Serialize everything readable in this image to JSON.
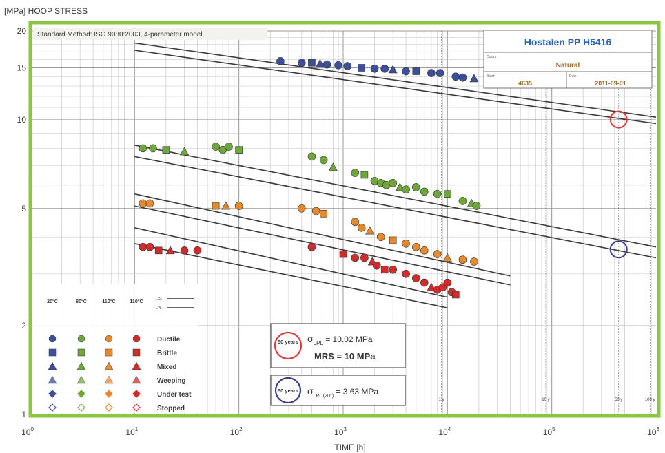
{
  "chart_data": {
    "type": "scatter",
    "ylabel": "[MPa] HOOP STRESS",
    "xlabel": "TIME [h]",
    "x_scale": "log",
    "y_scale": "log",
    "xlim": [
      1,
      1000000
    ],
    "ylim": [
      1,
      20
    ],
    "grid": true,
    "method_note": "Standard Method: ISO 9080:2003, 4-parameter model",
    "y_ticks": [
      {
        "value": 20,
        "label": "20"
      },
      {
        "value": 15,
        "label": "15"
      },
      {
        "value": 10,
        "label": "10"
      },
      {
        "value": 5,
        "label": "5"
      },
      {
        "value": 2,
        "label": "2"
      },
      {
        "value": 1,
        "label": "1"
      }
    ],
    "x_ticks": [
      {
        "value": 1,
        "base": "10",
        "exp": "0"
      },
      {
        "value": 10,
        "base": "10",
        "exp": "1"
      },
      {
        "value": 100,
        "base": "10",
        "exp": "2"
      },
      {
        "value": 1000,
        "base": "10",
        "exp": "3"
      },
      {
        "value": 10000,
        "base": "10",
        "exp": "4"
      },
      {
        "value": 100000,
        "base": "10",
        "exp": "5"
      },
      {
        "value": 1000000,
        "base": "10",
        "exp": "6"
      }
    ],
    "year_marks": [
      {
        "x": 8760,
        "label": "1 y"
      },
      {
        "x": 87600,
        "label": "10 y"
      },
      {
        "x": 438000,
        "label": "50 y"
      },
      {
        "x": 876000,
        "label": "100 y"
      }
    ],
    "info_box": {
      "title": "Hostalen PP H5416",
      "row1_label": "Colour",
      "row1_value": "Natural",
      "row2_label": "Batch",
      "row2_value": "4635",
      "row2b_label": "Date",
      "row2b_value": "2011-09-01"
    },
    "reference_lines": [
      {
        "name": "20°C",
        "points": [
          [
            10,
            18.2
          ],
          [
            1000000,
            10.2
          ]
        ]
      },
      {
        "name": "20°C",
        "points": [
          [
            10,
            17.2
          ],
          [
            1000000,
            9.7
          ]
        ]
      },
      {
        "name": "80°C",
        "points": [
          [
            10,
            8.2
          ],
          [
            1000000,
            3.7
          ]
        ]
      },
      {
        "name": "80°C",
        "points": [
          [
            10,
            7.5
          ],
          [
            1000000,
            3.4
          ]
        ]
      },
      {
        "name": "110°C",
        "points": [
          [
            10,
            5.6
          ],
          [
            40000,
            2.95
          ]
        ]
      },
      {
        "name": "110°C",
        "points": [
          [
            10,
            5.1
          ],
          [
            40000,
            2.75
          ]
        ]
      },
      {
        "name": "110°C",
        "points": [
          [
            10,
            4.3
          ],
          [
            10000,
            2.5
          ]
        ]
      },
      {
        "name": "110°C",
        "points": [
          [
            10,
            3.8
          ],
          [
            10000,
            2.3
          ]
        ]
      }
    ],
    "extrapolation_circles": [
      {
        "x": 438000,
        "y": 10.02,
        "color": "#e03a3a"
      },
      {
        "x": 438000,
        "y": 3.63,
        "color": "#3a3a8a"
      }
    ],
    "series": [
      {
        "name": "20°C",
        "color": "#3d4f9b",
        "values": [
          {
            "x": 250,
            "y": 15.8
          },
          {
            "x": 400,
            "y": 15.6
          },
          {
            "x": 500,
            "y": 15.6
          },
          {
            "x": 600,
            "y": 15.5
          },
          {
            "x": 700,
            "y": 15.4
          },
          {
            "x": 900,
            "y": 15.3
          },
          {
            "x": 1100,
            "y": 15.2
          },
          {
            "x": 1500,
            "y": 15.0
          },
          {
            "x": 2000,
            "y": 14.9
          },
          {
            "x": 2500,
            "y": 14.9
          },
          {
            "x": 3000,
            "y": 14.8
          },
          {
            "x": 4000,
            "y": 14.6
          },
          {
            "x": 5000,
            "y": 14.6
          },
          {
            "x": 7000,
            "y": 14.4
          },
          {
            "x": 8500,
            "y": 14.4
          },
          {
            "x": 12000,
            "y": 14.0
          },
          {
            "x": 14000,
            "y": 13.9
          },
          {
            "x": 18000,
            "y": 13.8
          }
        ]
      },
      {
        "name": "80°C",
        "color": "#6fa83a",
        "values": [
          {
            "x": 12,
            "y": 8.0
          },
          {
            "x": 15,
            "y": 8.0
          },
          {
            "x": 20,
            "y": 7.9
          },
          {
            "x": 30,
            "y": 7.8
          },
          {
            "x": 60,
            "y": 8.1
          },
          {
            "x": 70,
            "y": 7.9
          },
          {
            "x": 80,
            "y": 8.1
          },
          {
            "x": 100,
            "y": 7.9
          },
          {
            "x": 500,
            "y": 7.5
          },
          {
            "x": 650,
            "y": 7.3
          },
          {
            "x": 800,
            "y": 6.9
          },
          {
            "x": 1300,
            "y": 6.6
          },
          {
            "x": 1600,
            "y": 6.5
          },
          {
            "x": 2000,
            "y": 6.2
          },
          {
            "x": 2300,
            "y": 6.1
          },
          {
            "x": 2600,
            "y": 6.0
          },
          {
            "x": 3000,
            "y": 6.1
          },
          {
            "x": 3500,
            "y": 5.9
          },
          {
            "x": 4000,
            "y": 5.8
          },
          {
            "x": 5000,
            "y": 5.9
          },
          {
            "x": 6000,
            "y": 5.7
          },
          {
            "x": 8000,
            "y": 5.6
          },
          {
            "x": 10000,
            "y": 5.6
          },
          {
            "x": 14000,
            "y": 5.3
          },
          {
            "x": 17000,
            "y": 5.2
          },
          {
            "x": 19000,
            "y": 5.1
          }
        ]
      },
      {
        "name": "110°C",
        "color": "#e88a2c",
        "values": [
          {
            "x": 12,
            "y": 5.2
          },
          {
            "x": 14,
            "y": 5.2
          },
          {
            "x": 60,
            "y": 5.1
          },
          {
            "x": 75,
            "y": 5.1
          },
          {
            "x": 100,
            "y": 5.1
          },
          {
            "x": 400,
            "y": 5.0
          },
          {
            "x": 550,
            "y": 4.9
          },
          {
            "x": 650,
            "y": 4.8
          },
          {
            "x": 1300,
            "y": 4.5
          },
          {
            "x": 1500,
            "y": 4.3
          },
          {
            "x": 1800,
            "y": 4.2
          },
          {
            "x": 2300,
            "y": 4.0
          },
          {
            "x": 3000,
            "y": 3.9
          },
          {
            "x": 4000,
            "y": 3.8
          },
          {
            "x": 5000,
            "y": 3.7
          },
          {
            "x": 6000,
            "y": 3.6
          },
          {
            "x": 8000,
            "y": 3.5
          },
          {
            "x": 10000,
            "y": 3.4
          },
          {
            "x": 14000,
            "y": 3.35
          },
          {
            "x": 18000,
            "y": 3.3
          }
        ]
      },
      {
        "name": "110°C",
        "color": "#d32b2b",
        "values": [
          {
            "x": 12,
            "y": 3.7
          },
          {
            "x": 14,
            "y": 3.7
          },
          {
            "x": 17,
            "y": 3.6
          },
          {
            "x": 22,
            "y": 3.6
          },
          {
            "x": 30,
            "y": 3.6
          },
          {
            "x": 40,
            "y": 3.6
          },
          {
            "x": 500,
            "y": 3.7
          },
          {
            "x": 1000,
            "y": 3.5
          },
          {
            "x": 1300,
            "y": 3.4
          },
          {
            "x": 1600,
            "y": 3.4
          },
          {
            "x": 1900,
            "y": 3.3
          },
          {
            "x": 2100,
            "y": 3.2
          },
          {
            "x": 2500,
            "y": 3.1
          },
          {
            "x": 3000,
            "y": 3.1
          },
          {
            "x": 4000,
            "y": 3.0
          },
          {
            "x": 5000,
            "y": 2.9
          },
          {
            "x": 6000,
            "y": 2.8
          },
          {
            "x": 7000,
            "y": 2.7
          },
          {
            "x": 8000,
            "y": 2.65
          },
          {
            "x": 9000,
            "y": 2.7
          },
          {
            "x": 10000,
            "y": 2.8
          },
          {
            "x": 11000,
            "y": 2.6
          },
          {
            "x": 12000,
            "y": 2.55
          }
        ]
      }
    ],
    "legend": {
      "position": "bottom-left",
      "temperatures": [
        "20°C",
        "80°C",
        "110°C",
        "110°C"
      ],
      "line_labels": [
        "LCL",
        "LPL"
      ],
      "rows": [
        "Ductile",
        "Brittle",
        "Mixed",
        "Weeping",
        "Under test",
        "Stopped"
      ]
    },
    "annotations": {
      "box1_circle": "50 years",
      "box1_sigma": "σ",
      "box1_sub": "LPL",
      "box1_value": " = 10.02 MPa",
      "box1_mrs": "MRS = 10 MPa",
      "box2_circle": "50 years",
      "box2_sigma": "σ",
      "box2_sub": "LPL (20°)",
      "box2_value": " = 3.63 MPa"
    }
  }
}
